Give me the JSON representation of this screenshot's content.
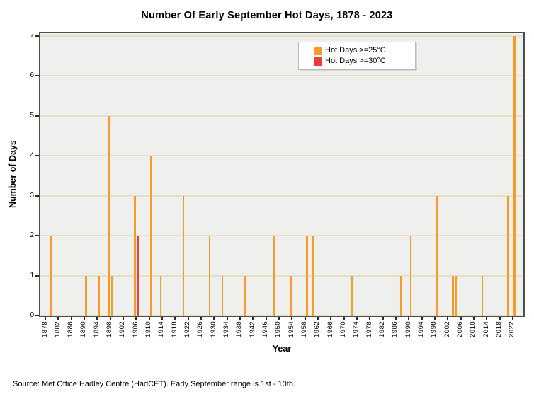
{
  "title": "Number Of Early September Hot Days, 1878 - 2023",
  "source_note": "Source: Met Office Hadley Centre (HadCET). Early September range is 1st - 10th.",
  "legend": {
    "items": [
      {
        "label": "Hot Days >=25°C",
        "color": "#F79A28"
      },
      {
        "label": "Hot Days >=30°C",
        "color": "#EF3B3B"
      }
    ]
  },
  "colors": {
    "plot_background": "#efefee",
    "gridline": "#e4e1c4",
    "plot_border": "#4f4f4f",
    "orange_bar": "#F79A28",
    "red_bar": "#EF3B3B"
  },
  "chart_data": {
    "type": "bar",
    "title": "Number Of Early September Hot Days, 1878 - 2023",
    "xlabel": "Year",
    "ylabel": "Number of Days",
    "xlim": [
      1876,
      2026
    ],
    "ylim": [
      0,
      7
    ],
    "yticks": [
      0,
      1,
      2,
      3,
      4,
      5,
      6,
      7
    ],
    "xticks": {
      "start": 1878,
      "end": 2022,
      "step": 4
    },
    "grid": "horizontal",
    "legend_position": "top-center",
    "series": [
      {
        "name": "Hot Days >=25°C",
        "color": "#F79A28",
        "points": [
          {
            "year": 1880,
            "value": 2
          },
          {
            "year": 1891,
            "value": 1
          },
          {
            "year": 1895,
            "value": 1
          },
          {
            "year": 1898,
            "value": 5
          },
          {
            "year": 1899,
            "value": 1
          },
          {
            "year": 1906,
            "value": 3
          },
          {
            "year": 1911,
            "value": 4
          },
          {
            "year": 1914,
            "value": 1
          },
          {
            "year": 1921,
            "value": 3
          },
          {
            "year": 1929,
            "value": 2
          },
          {
            "year": 1933,
            "value": 1
          },
          {
            "year": 1940,
            "value": 1
          },
          {
            "year": 1949,
            "value": 2
          },
          {
            "year": 1954,
            "value": 1
          },
          {
            "year": 1959,
            "value": 2
          },
          {
            "year": 1961,
            "value": 2
          },
          {
            "year": 1973,
            "value": 1
          },
          {
            "year": 1988,
            "value": 1
          },
          {
            "year": 1991,
            "value": 2
          },
          {
            "year": 1999,
            "value": 3
          },
          {
            "year": 2004,
            "value": 1
          },
          {
            "year": 2005,
            "value": 1
          },
          {
            "year": 2013,
            "value": 1
          },
          {
            "year": 2021,
            "value": 3
          },
          {
            "year": 2023,
            "value": 7
          }
        ]
      },
      {
        "name": "Hot Days >=30°C",
        "color": "#EF3B3B",
        "points": [
          {
            "year": 1906,
            "value": 2
          }
        ]
      }
    ]
  }
}
